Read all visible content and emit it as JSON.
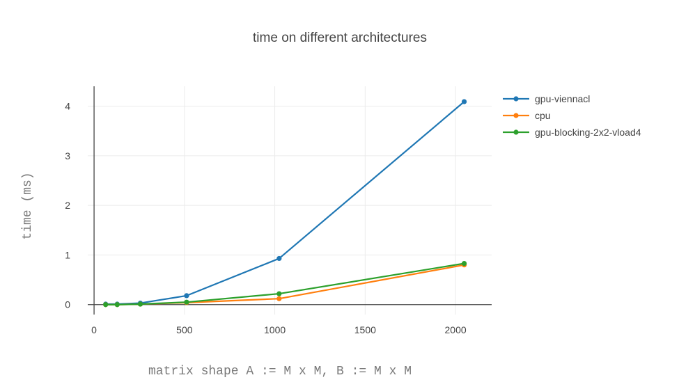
{
  "chart_data": {
    "type": "line",
    "title": "time on different architectures",
    "xlabel": "matrix shape A := M x M, B := M x M",
    "ylabel": "time (ms)",
    "xlim": [
      -35,
      2200
    ],
    "ylim": [
      -0.2,
      4.4
    ],
    "xticks": [
      0,
      500,
      1000,
      1500,
      2000
    ],
    "yticks": [
      0,
      1,
      2,
      3,
      4
    ],
    "grid": true,
    "legend_position": "top-right",
    "series": [
      {
        "name": "gpu-viennacl",
        "color": "#1f77b4",
        "x": [
          64,
          128,
          256,
          512,
          1024,
          2048
        ],
        "y": [
          0.01,
          0.01,
          0.03,
          0.18,
          0.93,
          4.09
        ]
      },
      {
        "name": "cpu",
        "color": "#ff7f0e",
        "x": [
          64,
          128,
          256,
          512,
          1024,
          2048
        ],
        "y": [
          0.0,
          0.0,
          0.01,
          0.04,
          0.12,
          0.8
        ]
      },
      {
        "name": "gpu-blocking-2x2-vload4",
        "color": "#2ca02c",
        "x": [
          64,
          128,
          256,
          512,
          1024,
          2048
        ],
        "y": [
          0.0,
          0.0,
          0.01,
          0.05,
          0.22,
          0.83
        ]
      }
    ]
  }
}
